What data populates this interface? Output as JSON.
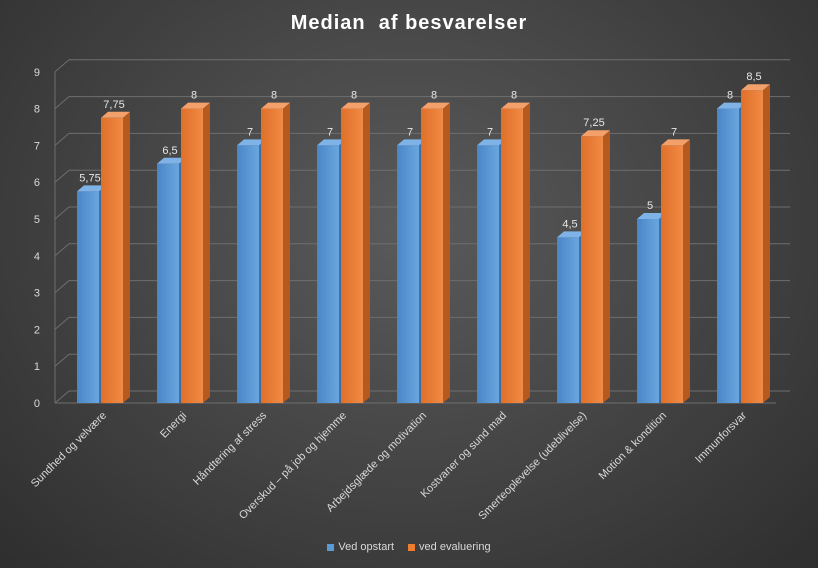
{
  "chart_data": {
    "type": "bar",
    "title": "Median  af besvarelser",
    "categories": [
      "Sundhed og velvære",
      "Energi",
      "Håndtering af stress",
      "Overskud – på job og hjemme",
      "Arbejdsglæde og motivation",
      "Kostvaner og sund mad",
      "Smerteoplevelse (udeblivelse)",
      "Motion & kondition",
      "Immunforsvar"
    ],
    "series": [
      {
        "name": "Ved opstart",
        "values": [
          5.75,
          6.5,
          7,
          7,
          7,
          7,
          4.5,
          5,
          8
        ],
        "labels": [
          "5,75",
          "6,5",
          "7",
          "7",
          "7",
          "7",
          "4,5",
          "5",
          "8"
        ],
        "color": "#4f8fd6"
      },
      {
        "name": "ved evaluering",
        "values": [
          7.75,
          8,
          8,
          8,
          8,
          8,
          7.25,
          7,
          8.5
        ],
        "labels": [
          "7,75",
          "8",
          "8",
          "8",
          "8",
          "8",
          "7,25",
          "7",
          "8,5"
        ],
        "color": "#ed7d31"
      }
    ],
    "ylim": [
      0,
      9
    ],
    "yticks": [
      0,
      1,
      2,
      3,
      4,
      5,
      6,
      7,
      8,
      9
    ],
    "grid": true,
    "legend_position": "bottom",
    "style": "3d-column"
  }
}
